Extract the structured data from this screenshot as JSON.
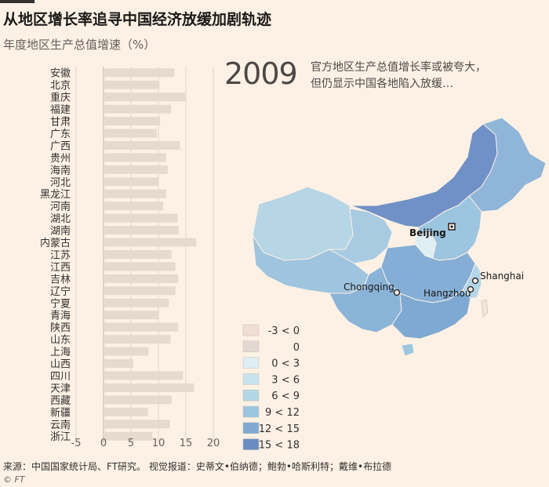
{
  "title": "从地区增长率追寻中国经济放缓加剧轨迹",
  "subtitle": "年度地区生产总值增速（%）",
  "year": "2009",
  "annotation": [
    "官方地区生产总值增长率或被夸大，",
    "但仍显示中国各地陷入放缓…"
  ],
  "footer": "来源：中国国家统计局、FT研究。 视觉报道：史蒂文•伯纳德；鲍勃•哈斯利特；戴维•布拉德",
  "copyright": "© FT",
  "colors": {
    "background": "#fdf1e5",
    "bar": "#e6d9ce",
    "grid": "#e0d3c8",
    "zero_line": "#b3a99f"
  },
  "chart_data": {
    "type": "bar",
    "orientation": "horizontal",
    "categories": [
      "安徽",
      "北京",
      "重庆",
      "福建",
      "甘肃",
      "广东",
      "广西",
      "贵州",
      "海南",
      "河北",
      "黑龙江",
      "河南",
      "湖北",
      "湖南",
      "内蒙古",
      "江苏",
      "江西",
      "吉林",
      "辽宁",
      "宁夏",
      "青海",
      "陕西",
      "山东",
      "上海",
      "山西",
      "四川",
      "天津",
      "西藏",
      "新疆",
      "云南",
      "浙江"
    ],
    "values": [
      12.9,
      10.2,
      14.9,
      12.3,
      10.3,
      9.7,
      13.9,
      11.4,
      11.7,
      10.0,
      11.4,
      10.9,
      13.5,
      13.7,
      16.9,
      12.4,
      13.1,
      13.6,
      13.1,
      11.9,
      10.1,
      13.6,
      12.2,
      8.2,
      5.4,
      14.5,
      16.5,
      12.4,
      8.1,
      12.1,
      8.9
    ],
    "xticks": [
      -5,
      0,
      5,
      10,
      15,
      20
    ],
    "xlim": [
      -5,
      20
    ]
  },
  "map": {
    "legend": [
      {
        "label": "-3 < 0",
        "color": "#f0ddd3"
      },
      {
        "label": "0",
        "color": "#e2d9d2"
      },
      {
        "label": "0 < 3",
        "color": "#dfeef2"
      },
      {
        "label": "3 < 6",
        "color": "#c8e3ec"
      },
      {
        "label": "6 < 9",
        "color": "#b3d6e6"
      },
      {
        "label": "9 < 12",
        "color": "#9cc5df"
      },
      {
        "label": "12 < 15",
        "color": "#7ea9d2"
      },
      {
        "label": "15 < 18",
        "color": "#6a8cc3"
      }
    ],
    "cities": [
      {
        "name": "Beijing",
        "capital": true
      },
      {
        "name": "Shanghai",
        "capital": false
      },
      {
        "name": "Chongqing",
        "capital": false
      },
      {
        "name": "Hangzhou",
        "capital": false
      }
    ]
  }
}
